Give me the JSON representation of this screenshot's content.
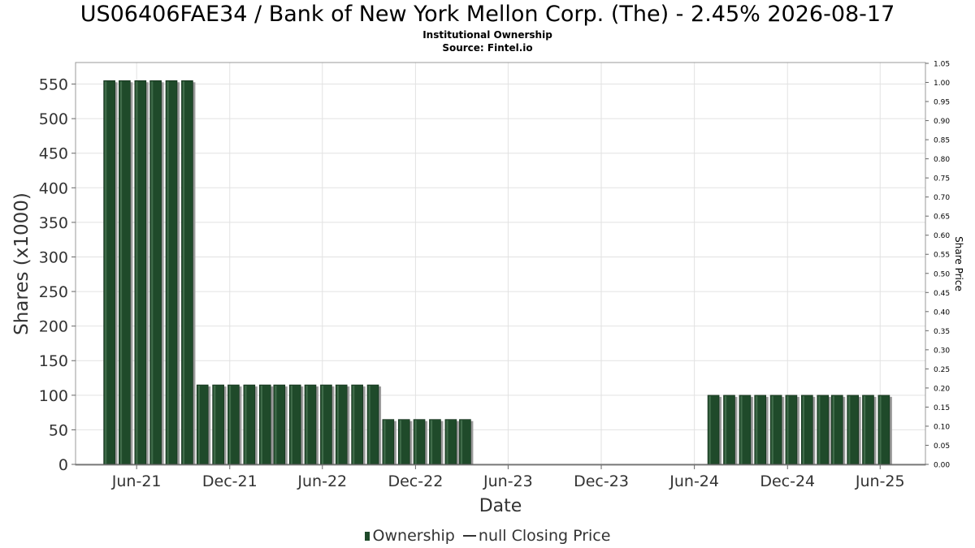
{
  "chart_data": {
    "type": "bar",
    "title": "US06406FAE34 / Bank of New York Mellon Corp. (The) - 2.45% 2026-08-17",
    "subtitle": "Institutional Ownership",
    "source": "Source: Fintel.io",
    "xlabel": "Date",
    "ylabel": "Shares (x1000)",
    "y2label": "Share Price",
    "ylim": [
      0,
      580
    ],
    "y2lim": [
      0,
      1.05
    ],
    "grid": true,
    "yticks": [
      "0",
      "50",
      "100",
      "150",
      "200",
      "250",
      "300",
      "350",
      "400",
      "450",
      "500",
      "550"
    ],
    "y2ticks": [
      "0.00",
      "0.05",
      "0.10",
      "0.15",
      "0.20",
      "0.25",
      "0.30",
      "0.35",
      "0.40",
      "0.45",
      "0.50",
      "0.55",
      "0.60",
      "0.65",
      "0.70",
      "0.75",
      "0.80",
      "0.85",
      "0.90",
      "0.95",
      "1.00",
      "1.05"
    ],
    "xticks": [
      {
        "label": "Jun-21",
        "date": "2021-06-01"
      },
      {
        "label": "Dec-21",
        "date": "2021-12-01"
      },
      {
        "label": "Jun-22",
        "date": "2022-06-01"
      },
      {
        "label": "Dec-22",
        "date": "2022-12-01"
      },
      {
        "label": "Jun-23",
        "date": "2023-06-01"
      },
      {
        "label": "Dec-23",
        "date": "2023-12-01"
      },
      {
        "label": "Jun-24",
        "date": "2024-06-01"
      },
      {
        "label": "Dec-24",
        "date": "2024-12-01"
      },
      {
        "label": "Jun-25",
        "date": "2025-06-01"
      }
    ],
    "xlim": [
      "2021-02-01",
      "2025-08-29"
    ],
    "series": [
      {
        "name": "Ownership",
        "color": "#1f4a2a",
        "points": [
          {
            "date": "2021-04-10",
            "value": 555
          },
          {
            "date": "2021-05-10",
            "value": 555
          },
          {
            "date": "2021-06-10",
            "value": 555
          },
          {
            "date": "2021-07-10",
            "value": 555
          },
          {
            "date": "2021-08-10",
            "value": 555
          },
          {
            "date": "2021-09-10",
            "value": 555
          },
          {
            "date": "2021-10-10",
            "value": 115
          },
          {
            "date": "2021-11-10",
            "value": 115
          },
          {
            "date": "2021-12-10",
            "value": 115
          },
          {
            "date": "2022-01-10",
            "value": 115
          },
          {
            "date": "2022-02-10",
            "value": 115
          },
          {
            "date": "2022-03-10",
            "value": 115
          },
          {
            "date": "2022-04-10",
            "value": 115
          },
          {
            "date": "2022-05-10",
            "value": 115
          },
          {
            "date": "2022-06-10",
            "value": 115
          },
          {
            "date": "2022-07-10",
            "value": 115
          },
          {
            "date": "2022-08-10",
            "value": 115
          },
          {
            "date": "2022-09-10",
            "value": 115
          },
          {
            "date": "2022-10-10",
            "value": 65
          },
          {
            "date": "2022-11-10",
            "value": 65
          },
          {
            "date": "2022-12-10",
            "value": 65
          },
          {
            "date": "2023-01-10",
            "value": 65
          },
          {
            "date": "2023-02-10",
            "value": 65
          },
          {
            "date": "2023-03-10",
            "value": 65
          },
          {
            "date": "2024-07-10",
            "value": 100
          },
          {
            "date": "2024-08-10",
            "value": 100
          },
          {
            "date": "2024-09-10",
            "value": 100
          },
          {
            "date": "2024-10-10",
            "value": 100
          },
          {
            "date": "2024-11-10",
            "value": 100
          },
          {
            "date": "2024-12-10",
            "value": 100
          },
          {
            "date": "2025-01-10",
            "value": 100
          },
          {
            "date": "2025-02-10",
            "value": 100
          },
          {
            "date": "2025-03-10",
            "value": 100
          },
          {
            "date": "2025-04-10",
            "value": 100
          },
          {
            "date": "2025-05-10",
            "value": 100
          },
          {
            "date": "2025-06-10",
            "value": 100
          }
        ]
      },
      {
        "name": "null Closing Price",
        "color": "#333333",
        "points": []
      }
    ],
    "legend": [
      "Ownership",
      "null Closing Price"
    ],
    "legend_position": "bottom"
  }
}
